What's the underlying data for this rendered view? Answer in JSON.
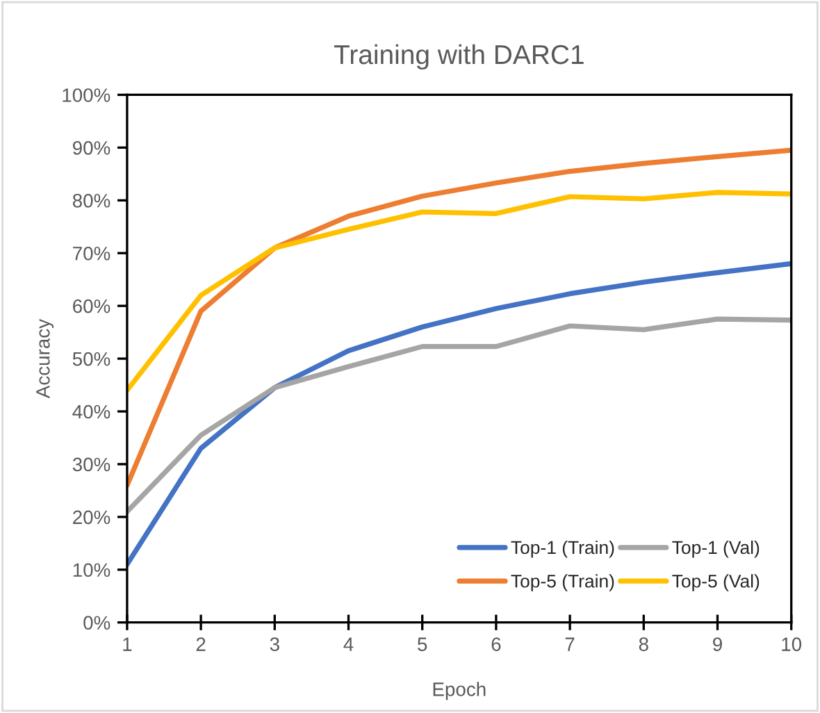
{
  "chart_data": {
    "type": "line",
    "title": "Training with DARC1",
    "xlabel": "Epoch",
    "ylabel": "Accuracy",
    "x": [
      1,
      2,
      3,
      4,
      5,
      6,
      7,
      8,
      9,
      10
    ],
    "series": [
      {
        "name": "Top-1 (Train)",
        "color": "#4472c4",
        "values": [
          11,
          33,
          44.5,
          51.5,
          56,
          59.5,
          62.3,
          64.5,
          66.3,
          68
        ]
      },
      {
        "name": "Top-5 (Train)",
        "color": "#ed7d31",
        "values": [
          26,
          59,
          71,
          77,
          80.8,
          83.3,
          85.5,
          87,
          88.3,
          89.5
        ]
      },
      {
        "name": "Top-1 (Val)",
        "color": "#a5a5a5",
        "values": [
          21,
          35.5,
          44.5,
          48.5,
          52.3,
          52.3,
          56.2,
          55.5,
          57.5,
          57.3
        ]
      },
      {
        "name": "Top-5 (Val)",
        "color": "#ffc000",
        "values": [
          44,
          62,
          71,
          74.5,
          77.8,
          77.5,
          80.7,
          80.3,
          81.5,
          81.2
        ]
      }
    ],
    "xlim": [
      1,
      10
    ],
    "xticks": [
      1,
      2,
      3,
      4,
      5,
      6,
      7,
      8,
      9,
      10
    ],
    "ylim": [
      0,
      100
    ],
    "yticks": [
      {
        "value": 0,
        "label": "0%"
      },
      {
        "value": 10,
        "label": "10%"
      },
      {
        "value": 20,
        "label": "20%"
      },
      {
        "value": 30,
        "label": "30%"
      },
      {
        "value": 40,
        "label": "40%"
      },
      {
        "value": 50,
        "label": "50%"
      },
      {
        "value": 60,
        "label": "60%"
      },
      {
        "value": 70,
        "label": "70%"
      },
      {
        "value": 80,
        "label": "80%"
      },
      {
        "value": 90,
        "label": "90%"
      },
      {
        "value": 100,
        "label": "100%"
      }
    ],
    "grid": false,
    "legend": "bottom right",
    "marker": "none",
    "line_style": "solid"
  }
}
